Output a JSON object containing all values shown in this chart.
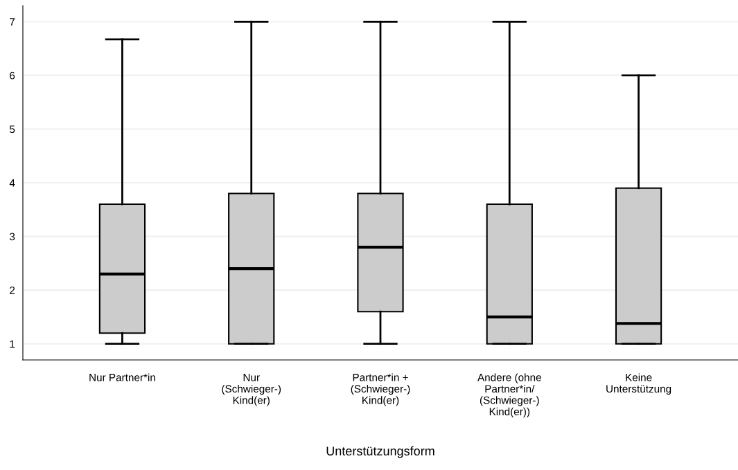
{
  "chart_data": {
    "type": "box",
    "xlabel": "Unterstützungsform",
    "categories": [
      "Nur Partner*in",
      "Nur\n(Schwieger-)\nKind(er)",
      "Partner*in +\n(Schwieger-)\nKind(er)",
      "Andere (ohne\nPartner*in/\n(Schwieger-)\nKind(er))",
      "Keine\nUnterstützung"
    ],
    "boxes": [
      {
        "low": 1,
        "q1": 1.2,
        "median": 2.3,
        "q3": 3.6,
        "high": 6.67
      },
      {
        "low": 1,
        "q1": 1,
        "median": 2.4,
        "q3": 3.8,
        "high": 7
      },
      {
        "low": 1,
        "q1": 1.6,
        "median": 2.8,
        "q3": 3.8,
        "high": 7
      },
      {
        "low": 1,
        "q1": 1,
        "median": 1.5,
        "q3": 3.6,
        "high": 7
      },
      {
        "low": 1,
        "q1": 1,
        "median": 1.38,
        "q3": 3.9,
        "high": 6
      }
    ],
    "color": "#cccccc",
    "ylim": [
      0.7,
      7.3
    ],
    "yticks": [
      1,
      2,
      3,
      4,
      5,
      6,
      7
    ],
    "grid": "y"
  }
}
